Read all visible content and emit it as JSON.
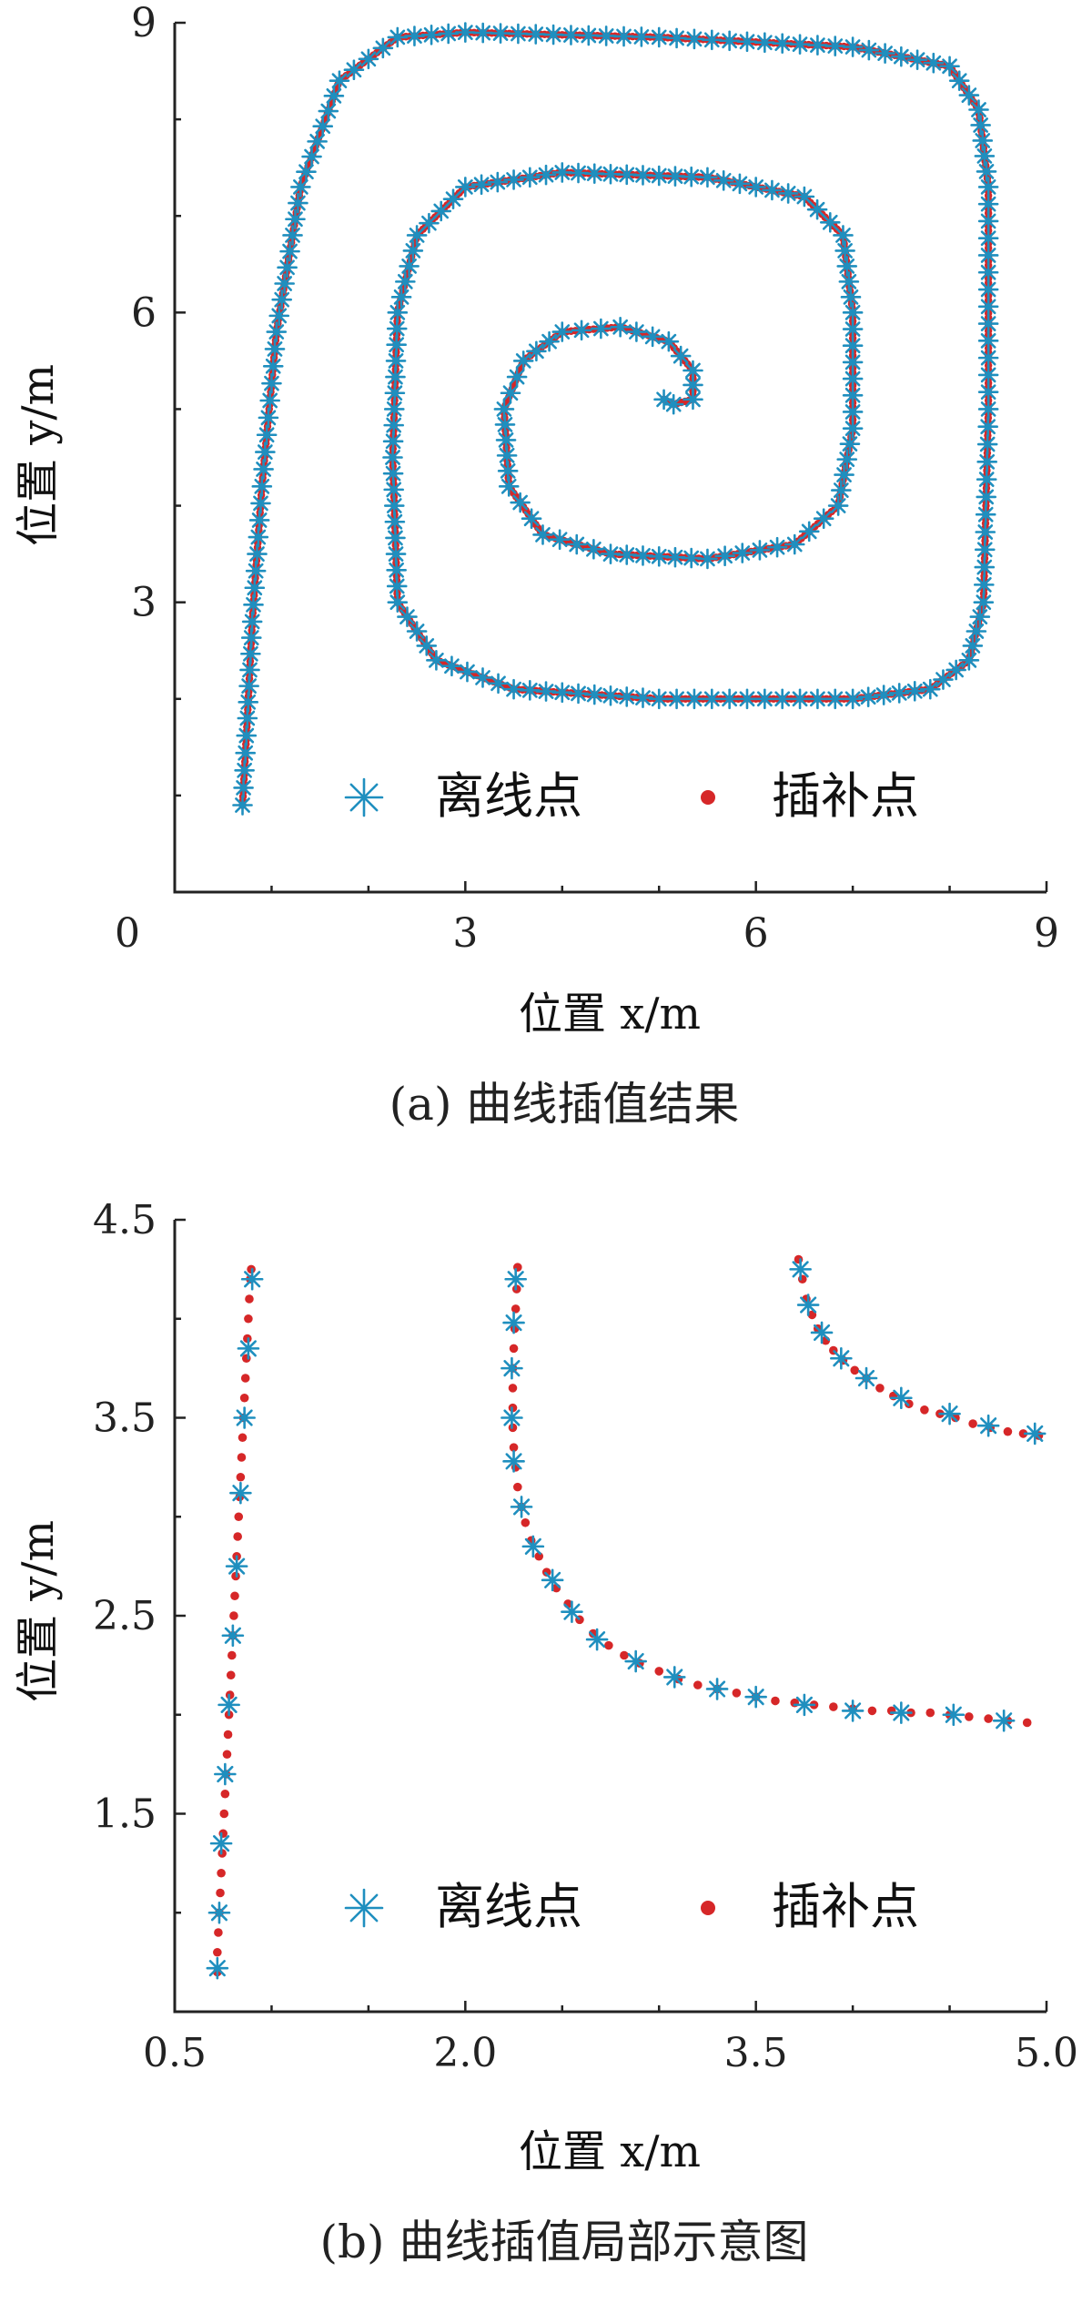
{
  "colors": {
    "offline": "#1f8fbf",
    "interp": "#d62728"
  },
  "chart_data": [
    {
      "type": "scatter",
      "title": "(a) 曲线插值结果",
      "xlabel": "位置 x/m",
      "ylabel": "位置 y/m",
      "xlim": [
        0,
        9
      ],
      "ylim": [
        0,
        9
      ],
      "xticks": [
        "0",
        "3",
        "6",
        "9"
      ],
      "yticks": [
        "3",
        "6",
        "9"
      ],
      "legend": {
        "position": "bottom-center",
        "entries": [
          "离线点",
          "插补点"
        ]
      },
      "path": [
        [
          0.7,
          0.9
        ],
        [
          0.75,
          1.8
        ],
        [
          0.8,
          2.8
        ],
        [
          0.9,
          4.2
        ],
        [
          1.05,
          5.8
        ],
        [
          1.3,
          7.3
        ],
        [
          1.7,
          8.4
        ],
        [
          2.3,
          8.85
        ],
        [
          3.0,
          8.9
        ],
        [
          5.0,
          8.85
        ],
        [
          7.0,
          8.75
        ],
        [
          8.0,
          8.55
        ],
        [
          8.3,
          8.1
        ],
        [
          8.4,
          7.3
        ],
        [
          8.4,
          5.0
        ],
        [
          8.35,
          3.0
        ],
        [
          8.2,
          2.4
        ],
        [
          7.8,
          2.1
        ],
        [
          7.0,
          2.0
        ],
        [
          5.0,
          2.0
        ],
        [
          3.5,
          2.1
        ],
        [
          2.7,
          2.4
        ],
        [
          2.3,
          3.0
        ],
        [
          2.25,
          4.5
        ],
        [
          2.3,
          6.0
        ],
        [
          2.5,
          6.8
        ],
        [
          3.0,
          7.3
        ],
        [
          4.0,
          7.45
        ],
        [
          5.5,
          7.4
        ],
        [
          6.5,
          7.2
        ],
        [
          6.9,
          6.8
        ],
        [
          7.0,
          6.0
        ],
        [
          7.0,
          4.8
        ],
        [
          6.85,
          4.0
        ],
        [
          6.4,
          3.6
        ],
        [
          5.5,
          3.45
        ],
        [
          4.5,
          3.5
        ],
        [
          3.8,
          3.7
        ],
        [
          3.45,
          4.2
        ],
        [
          3.4,
          5.0
        ],
        [
          3.6,
          5.5
        ],
        [
          4.0,
          5.8
        ],
        [
          4.6,
          5.85
        ],
        [
          5.1,
          5.7
        ],
        [
          5.35,
          5.4
        ],
        [
          5.35,
          5.1
        ],
        [
          5.15,
          5.05
        ],
        [
          5.05,
          5.1
        ]
      ],
      "offline_step": 4,
      "interp_step": 1
    },
    {
      "type": "scatter",
      "title": "(b) 曲线插值局部示意图",
      "xlabel": "位置 x/m",
      "ylabel": "位置 y/m",
      "xlim": [
        0.5,
        5.0
      ],
      "ylim": [
        0.5,
        4.5
      ],
      "xticks": [
        "0.5",
        "2.0",
        "3.5",
        "5.0"
      ],
      "yticks": [
        "1.5",
        "2.5",
        "3.5",
        "4.5"
      ],
      "legend": {
        "position": "bottom-center",
        "entries": [
          "离线点",
          "插补点"
        ]
      },
      "curves": [
        {
          "offline": [
            [
              0.72,
              0.72
            ],
            [
              0.73,
              1.0
            ],
            [
              0.74,
              1.35
            ],
            [
              0.76,
              1.7
            ],
            [
              0.78,
              2.05
            ],
            [
              0.8,
              2.4
            ],
            [
              0.82,
              2.75
            ],
            [
              0.84,
              3.12
            ],
            [
              0.86,
              3.5
            ],
            [
              0.88,
              3.85
            ],
            [
              0.9,
              4.2
            ]
          ],
          "interp": [
            [
              0.72,
              0.7
            ],
            [
              0.72,
              0.8
            ],
            [
              0.725,
              0.9
            ],
            [
              0.73,
              1.0
            ],
            [
              0.735,
              1.1
            ],
            [
              0.74,
              1.2
            ],
            [
              0.745,
              1.3
            ],
            [
              0.75,
              1.4
            ],
            [
              0.755,
              1.5
            ],
            [
              0.76,
              1.6
            ],
            [
              0.765,
              1.7
            ],
            [
              0.77,
              1.8
            ],
            [
              0.775,
              1.9
            ],
            [
              0.78,
              2.0
            ],
            [
              0.785,
              2.1
            ],
            [
              0.79,
              2.2
            ],
            [
              0.795,
              2.3
            ],
            [
              0.8,
              2.4
            ],
            [
              0.805,
              2.5
            ],
            [
              0.81,
              2.6
            ],
            [
              0.815,
              2.7
            ],
            [
              0.82,
              2.8
            ],
            [
              0.825,
              2.9
            ],
            [
              0.83,
              3.0
            ],
            [
              0.835,
              3.1
            ],
            [
              0.84,
              3.2
            ],
            [
              0.845,
              3.3
            ],
            [
              0.85,
              3.4
            ],
            [
              0.855,
              3.5
            ],
            [
              0.86,
              3.6
            ],
            [
              0.865,
              3.7
            ],
            [
              0.87,
              3.8
            ],
            [
              0.875,
              3.9
            ],
            [
              0.88,
              4.0
            ],
            [
              0.885,
              4.1
            ],
            [
              0.89,
              4.2
            ],
            [
              0.895,
              4.25
            ]
          ]
        },
        {
          "offline": [
            [
              2.26,
              4.2
            ],
            [
              2.25,
              3.98
            ],
            [
              2.24,
              3.75
            ],
            [
              2.24,
              3.5
            ],
            [
              2.25,
              3.28
            ],
            [
              2.29,
              3.05
            ],
            [
              2.35,
              2.85
            ],
            [
              2.45,
              2.68
            ],
            [
              2.55,
              2.52
            ],
            [
              2.68,
              2.38
            ],
            [
              2.88,
              2.27
            ],
            [
              3.08,
              2.19
            ],
            [
              3.3,
              2.13
            ],
            [
              3.5,
              2.09
            ],
            [
              3.75,
              2.05
            ],
            [
              4.0,
              2.02
            ],
            [
              4.25,
              2.01
            ],
            [
              4.52,
              2.0
            ],
            [
              4.78,
              1.97
            ]
          ],
          "interp": [
            [
              2.27,
              4.26
            ],
            [
              2.265,
              4.15
            ],
            [
              2.26,
              4.05
            ],
            [
              2.255,
              3.95
            ],
            [
              2.25,
              3.85
            ],
            [
              2.245,
              3.75
            ],
            [
              2.245,
              3.65
            ],
            [
              2.245,
              3.55
            ],
            [
              2.245,
              3.45
            ],
            [
              2.25,
              3.35
            ],
            [
              2.26,
              3.25
            ],
            [
              2.27,
              3.15
            ],
            [
              2.29,
              3.05
            ],
            [
              2.31,
              2.97
            ],
            [
              2.34,
              2.88
            ],
            [
              2.38,
              2.8
            ],
            [
              2.42,
              2.72
            ],
            [
              2.47,
              2.64
            ],
            [
              2.53,
              2.56
            ],
            [
              2.59,
              2.48
            ],
            [
              2.66,
              2.41
            ],
            [
              2.74,
              2.35
            ],
            [
              2.82,
              2.3
            ],
            [
              2.9,
              2.26
            ],
            [
              3.0,
              2.22
            ],
            [
              3.1,
              2.18
            ],
            [
              3.2,
              2.15
            ],
            [
              3.3,
              2.13
            ],
            [
              3.4,
              2.11
            ],
            [
              3.5,
              2.09
            ],
            [
              3.6,
              2.07
            ],
            [
              3.7,
              2.06
            ],
            [
              3.8,
              2.05
            ],
            [
              3.9,
              2.04
            ],
            [
              4.0,
              2.03
            ],
            [
              4.1,
              2.02
            ],
            [
              4.2,
              2.02
            ],
            [
              4.3,
              2.01
            ],
            [
              4.4,
              2.01
            ],
            [
              4.5,
              2.0
            ],
            [
              4.6,
              1.99
            ],
            [
              4.7,
              1.98
            ],
            [
              4.8,
              1.97
            ],
            [
              4.9,
              1.96
            ]
          ]
        },
        {
          "offline": [
            [
              3.73,
              4.25
            ],
            [
              3.77,
              4.07
            ],
            [
              3.84,
              3.93
            ],
            [
              3.94,
              3.8
            ],
            [
              4.07,
              3.7
            ],
            [
              4.25,
              3.6
            ],
            [
              4.5,
              3.52
            ],
            [
              4.7,
              3.46
            ],
            [
              4.94,
              3.42
            ]
          ],
          "interp": [
            [
              3.72,
              4.3
            ],
            [
              3.74,
              4.2
            ],
            [
              3.76,
              4.1
            ],
            [
              3.79,
              4.02
            ],
            [
              3.82,
              3.95
            ],
            [
              3.86,
              3.89
            ],
            [
              3.9,
              3.84
            ],
            [
              3.95,
              3.79
            ],
            [
              4.01,
              3.74
            ],
            [
              4.07,
              3.7
            ],
            [
              4.14,
              3.65
            ],
            [
              4.21,
              3.61
            ],
            [
              4.29,
              3.57
            ],
            [
              4.37,
              3.54
            ],
            [
              4.45,
              3.52
            ],
            [
              4.53,
              3.5
            ],
            [
              4.62,
              3.47
            ],
            [
              4.71,
              3.45
            ],
            [
              4.8,
              3.43
            ],
            [
              4.88,
              3.42
            ],
            [
              4.96,
              3.41
            ]
          ]
        }
      ]
    }
  ]
}
